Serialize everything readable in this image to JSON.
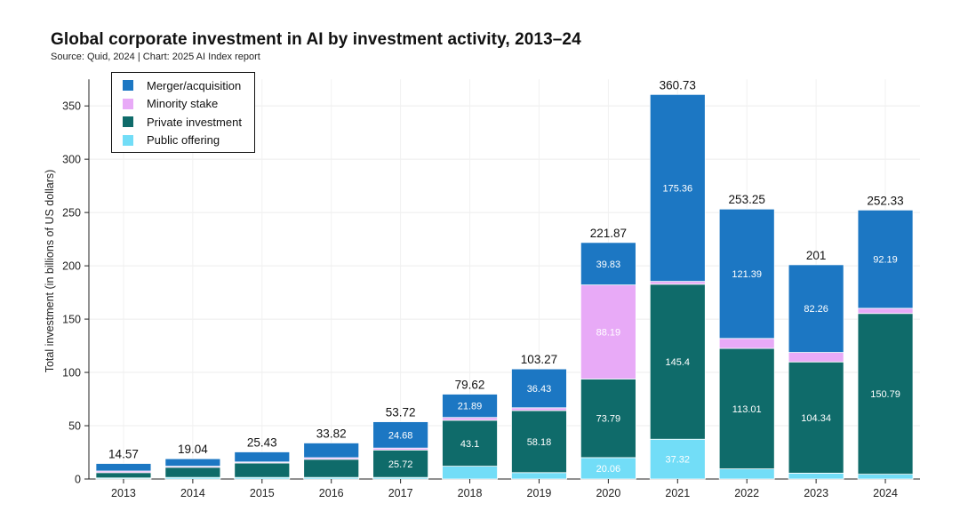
{
  "chart_data": {
    "type": "bar",
    "stacked": true,
    "title": "Global corporate investment in AI by investment activity, 2013–24",
    "subtitle": "Source: Quid, 2024 | Chart: 2025 AI Index report",
    "xlabel": "",
    "ylabel": "Total investment (in billions of US dollars)",
    "ylim": [
      0,
      375
    ],
    "yticks": [
      0,
      50,
      100,
      150,
      200,
      250,
      300,
      350
    ],
    "grid": true,
    "legend_placement": "top-left",
    "categories": [
      "2013",
      "2014",
      "2015",
      "2016",
      "2017",
      "2018",
      "2019",
      "2020",
      "2021",
      "2022",
      "2023",
      "2024"
    ],
    "totals": [
      14.57,
      19.04,
      25.43,
      33.82,
      53.72,
      79.62,
      103.27,
      221.87,
      360.73,
      253.25,
      201,
      252.33
    ],
    "series": [
      {
        "name": "Public offering",
        "color": "#72ddf7",
        "values": [
          1.0,
          1.5,
          1.5,
          1.5,
          1.5,
          12.0,
          6.0,
          20.06,
          37.32,
          9.5,
          5.5,
          4.5
        ],
        "labels": [
          "",
          "",
          "",
          "",
          "",
          "",
          "",
          "20.06",
          "37.32",
          "",
          "",
          ""
        ]
      },
      {
        "name": "Private investment",
        "color": "#0f6b6a",
        "values": [
          5.0,
          9.5,
          13.5,
          17.0,
          25.72,
          43.1,
          58.18,
          73.79,
          145.4,
          113.01,
          104.34,
          150.79
        ],
        "labels": [
          "",
          "",
          "",
          "",
          "25.72",
          "43.1",
          "58.18",
          "73.79",
          "145.4",
          "113.01",
          "104.34",
          "150.79"
        ]
      },
      {
        "name": "Minority stake",
        "color": "#e8aaf7",
        "values": [
          1.5,
          1.0,
          1.0,
          1.5,
          1.82,
          2.63,
          2.66,
          88.19,
          2.65,
          9.35,
          8.9,
          4.85
        ],
        "labels": [
          "",
          "",
          "",
          "",
          "",
          "",
          "",
          "88.19",
          "",
          "",
          "",
          ""
        ]
      },
      {
        "name": "Merger/acquisition",
        "color": "#1c77c3",
        "values": [
          7.07,
          7.04,
          9.43,
          13.82,
          24.68,
          21.89,
          36.43,
          39.83,
          175.36,
          121.39,
          82.26,
          92.19
        ],
        "labels": [
          "",
          "",
          "",
          "",
          "24.68",
          "21.89",
          "36.43",
          "39.83",
          "175.36",
          "121.39",
          "82.26",
          "92.19"
        ]
      }
    ],
    "legend_order": [
      "Merger/acquisition",
      "Minority stake",
      "Private investment",
      "Public offering"
    ]
  }
}
